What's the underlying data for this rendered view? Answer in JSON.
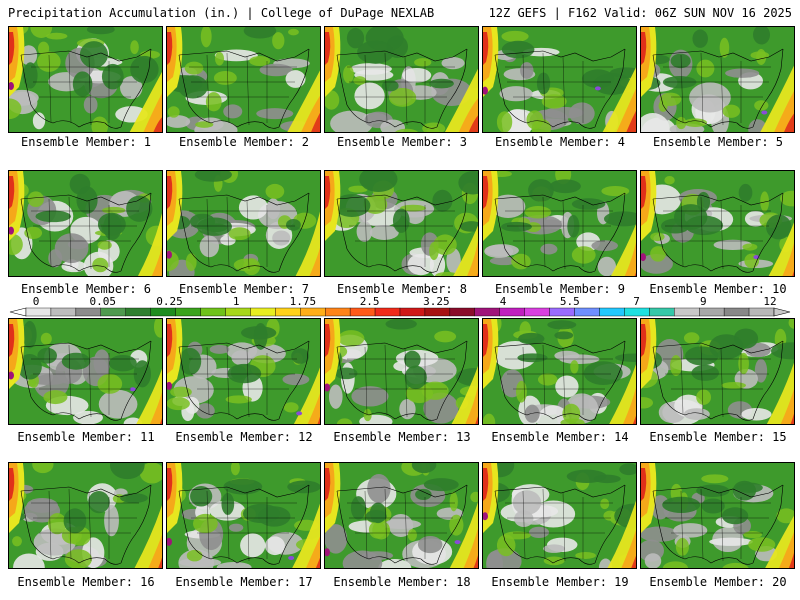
{
  "header": {
    "left_title": "Precipitation Accumulation (in.) | College of DuPage NEXLAB",
    "right_title": "12Z GEFS | F162 Valid: 06Z SUN NOV 16 2025"
  },
  "member_label_prefix": "Ensemble Member: ",
  "members": [
    1,
    2,
    3,
    4,
    5,
    6,
    7,
    8,
    9,
    10,
    11,
    12,
    13,
    14,
    15,
    16,
    17,
    18,
    19,
    20
  ],
  "colorbar": {
    "tick_labels": [
      "0",
      "0.05",
      "0.25",
      "1",
      "1.75",
      "2.5",
      "3.25",
      "4",
      "5.5",
      "7",
      "9",
      "12"
    ],
    "colors": [
      "#e6e6e6",
      "#bdbdbd",
      "#8c8c8c",
      "#4f9a4f",
      "#2f7f2f",
      "#1f8c1f",
      "#3aa31c",
      "#6fc21a",
      "#a8d81a",
      "#e8ee20",
      "#ffd21a",
      "#ffae19",
      "#ff8419",
      "#ff5a19",
      "#f02a1a",
      "#d01818",
      "#a81212",
      "#8a0c2a",
      "#a0137a",
      "#c01fbf",
      "#d93fe0",
      "#9b6bff",
      "#6f8fff",
      "#22c8ff",
      "#1fe0e0",
      "#35c8a8",
      "#c8c8c8",
      "#a8a8a8",
      "#888888",
      "#b8b8b8"
    ]
  },
  "map_colors": {
    "gray_light": "#e8e8e8",
    "gray_mid": "#bdbdbd",
    "gray_dark": "#8f8f8f",
    "green_dark": "#2f7d2b",
    "green": "#3e9a2c",
    "green_light": "#79c021",
    "yellow": "#e6e61f",
    "orange": "#f5a81a",
    "red": "#e0301a",
    "magenta": "#a0137a",
    "purple": "#8a4bd8"
  }
}
